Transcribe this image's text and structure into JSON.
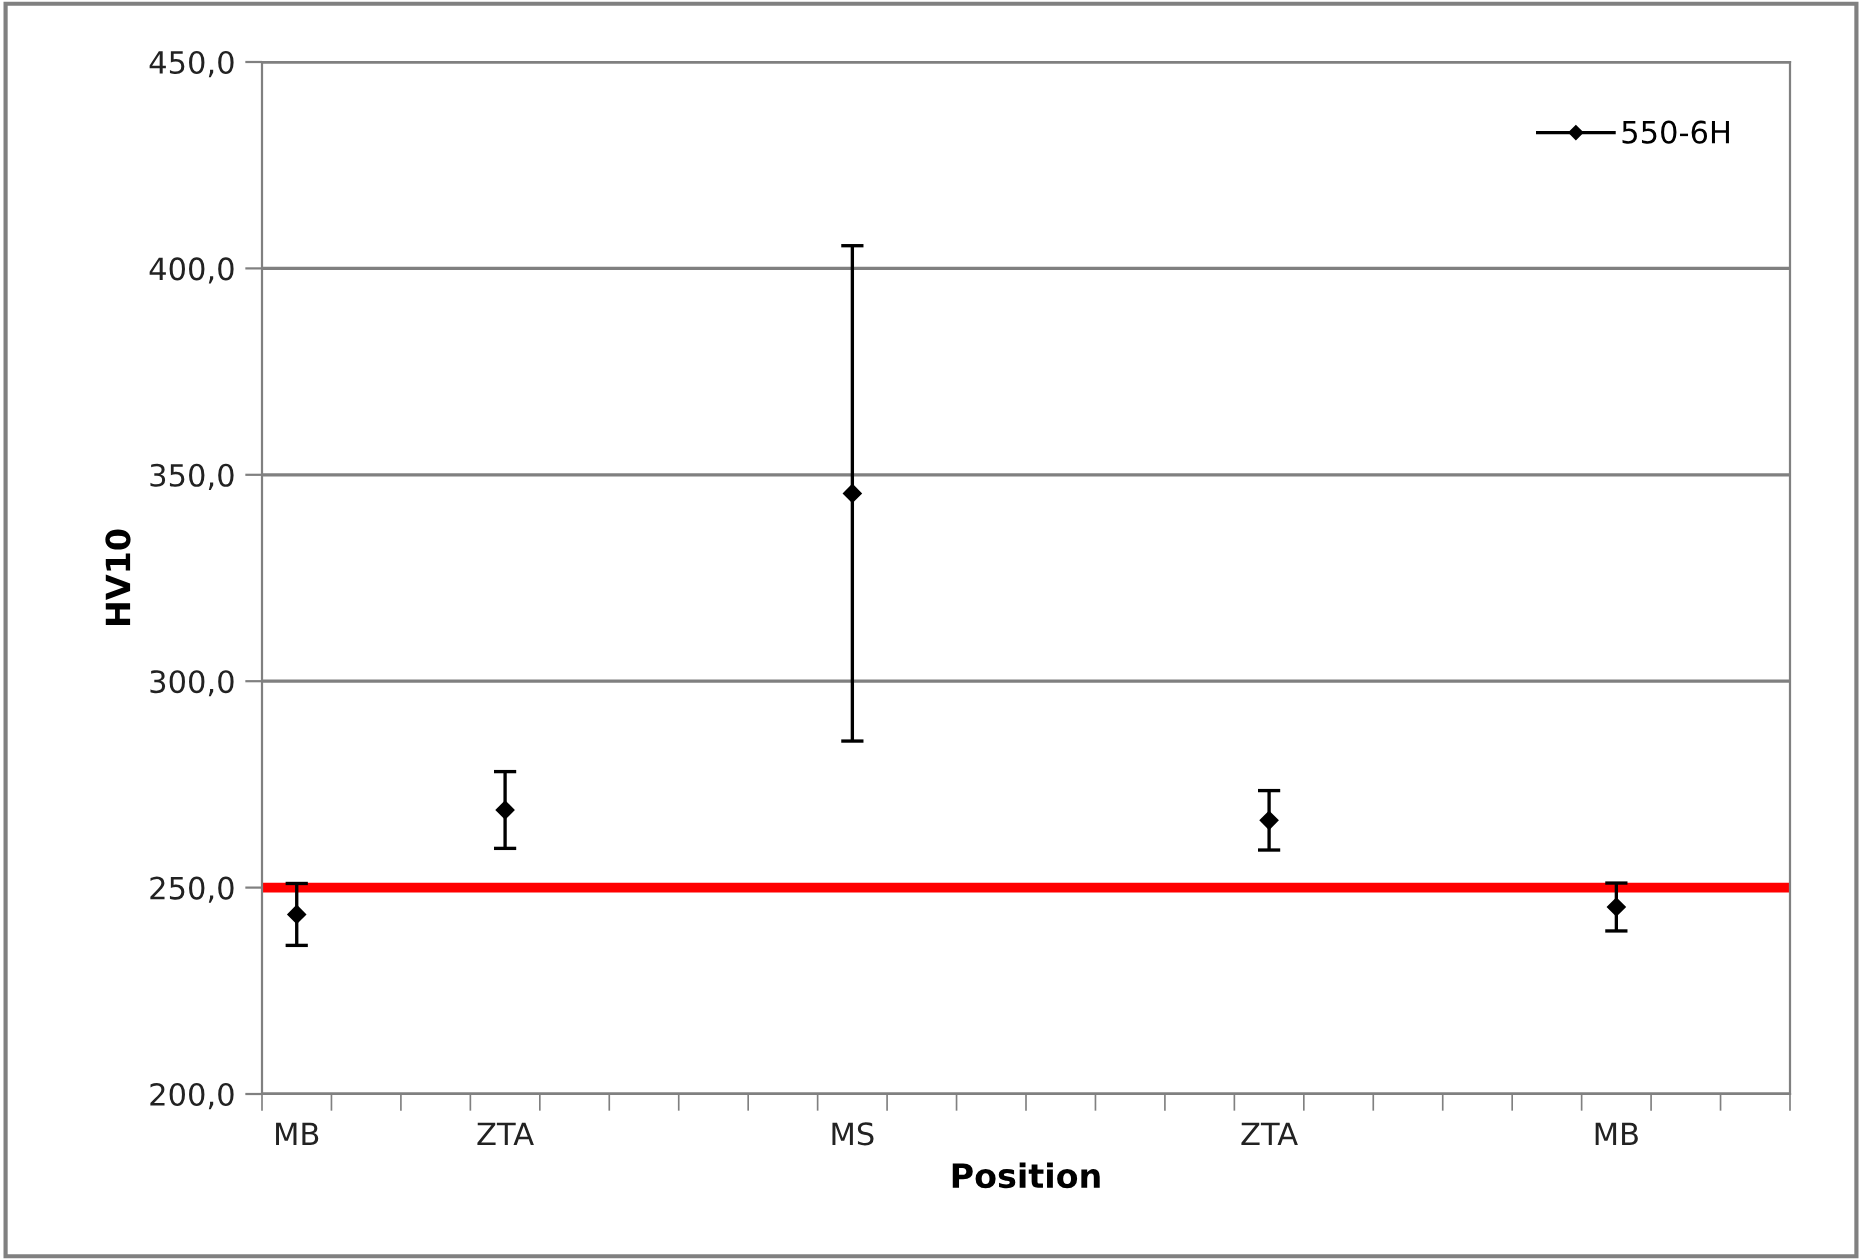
{
  "chart_data": {
    "type": "line",
    "xlabel": "Position",
    "ylabel": "HV10",
    "categories": [
      "MB",
      null,
      null,
      "ZTA",
      null,
      null,
      null,
      null,
      "MS",
      null,
      null,
      null,
      null,
      null,
      "ZTA",
      null,
      null,
      null,
      null,
      "MB",
      null,
      null
    ],
    "series": [
      {
        "name": "550-6H",
        "color": "#000000",
        "values": [
          243.5,
          null,
          null,
          268.8,
          null,
          null,
          null,
          null,
          345.5,
          null,
          null,
          null,
          null,
          null,
          266.3,
          null,
          null,
          null,
          null,
          245.3,
          null,
          null
        ],
        "errors": [
          7.5,
          null,
          null,
          9.3,
          null,
          null,
          null,
          null,
          60.0,
          null,
          null,
          null,
          null,
          null,
          7.2,
          null,
          null,
          null,
          null,
          5.8,
          null,
          null
        ]
      }
    ],
    "ylim": [
      200,
      450
    ],
    "yticks": [
      {
        "value": 200,
        "label": "200,0"
      },
      {
        "value": 250,
        "label": "250,0"
      },
      {
        "value": 300,
        "label": "300,0"
      },
      {
        "value": 350,
        "label": "350,0"
      },
      {
        "value": 400,
        "label": "400,0"
      },
      {
        "value": 450,
        "label": "450,0"
      }
    ],
    "ref_lines": [
      {
        "axis": "y",
        "value": 250,
        "color": "#ff0000"
      }
    ],
    "grid": "y",
    "legend": "top right",
    "marker": "diamond"
  }
}
